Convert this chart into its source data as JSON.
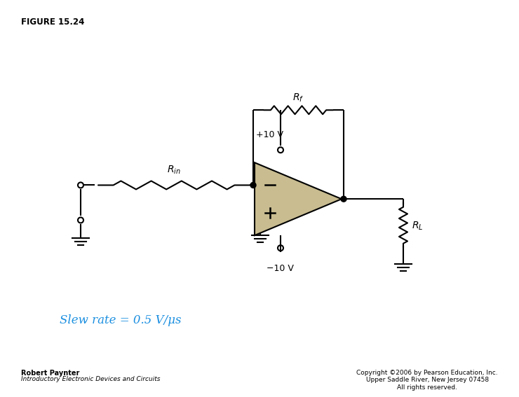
{
  "title": "FIGURE 15.24",
  "bg_color": "#ffffff",
  "line_color": "#000000",
  "line_width": 1.5,
  "slew_text": "Slew rate = 0.5 V/μs",
  "slew_color": "#1B8FE0",
  "slew_fontsize": 12,
  "label_Rf": "$R_f$",
  "label_Rin": "$R_{in}$",
  "label_RL": "$R_L$",
  "label_plus10": "+10 V",
  "label_minus10": "−10 V",
  "footer_left_bold": "Robert Paynter",
  "footer_left_italic": "Introductory Electronic Devices and Circuits",
  "footer_right": "Copyright ©2006 by Pearson Education, Inc.\nUpper Saddle River, New Jersey 07458\nAll rights reserved.",
  "opamp_color": "#c8bc90",
  "opamp_edge": "#000000",
  "dot_r": 4,
  "open_r": 4
}
